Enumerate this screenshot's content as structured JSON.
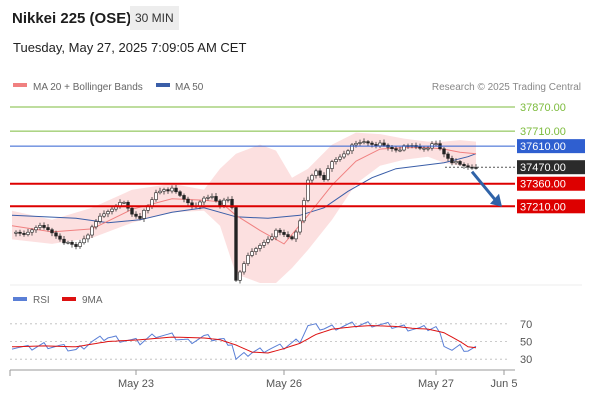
{
  "header": {
    "instrument": "Nikkei 225 (OSE)",
    "timeframe": "30 MIN",
    "timestamp": "Tuesday, May 27, 2025 7:09:05 AM CET",
    "credit": "Research © 2025 Trading Central"
  },
  "legend": {
    "price": [
      {
        "label": "MA 20 + Bollinger Bands",
        "color": "#f08080"
      },
      {
        "label": "MA 50",
        "color": "#3a5ea8"
      }
    ],
    "rsi": [
      {
        "label": "RSI",
        "color": "#5a7fd6"
      },
      {
        "label": "9MA",
        "color": "#dd1111"
      }
    ]
  },
  "chart_data": [
    {
      "type": "candlestick",
      "ylim": [
        36700,
        37950
      ],
      "levels": [
        {
          "value": 37870,
          "label": "37870.00",
          "kind": "resistance-target",
          "color": "#7cbb3c"
        },
        {
          "value": 37710,
          "label": "37710.00",
          "kind": "resistance-target",
          "color": "#7cbb3c"
        },
        {
          "value": 37610,
          "label": "37610.00",
          "kind": "pivot",
          "color": "#2f5fd0"
        },
        {
          "value": 37470,
          "label": "37470.00",
          "kind": "last-price",
          "color": "#2b2b2b"
        },
        {
          "value": 37360,
          "label": "37360.00",
          "kind": "support",
          "color": "#dd0000"
        },
        {
          "value": 37210,
          "label": "37210.00",
          "kind": "support",
          "color": "#dd0000"
        }
      ],
      "x_ticks": [
        "May 23",
        "May 26",
        "May 27",
        "Jun 5"
      ],
      "close_path": [
        [
          0,
          37030
        ],
        [
          3,
          37020
        ],
        [
          6,
          37080
        ],
        [
          9,
          37050
        ],
        [
          12,
          37000
        ],
        [
          14,
          36960
        ],
        [
          16,
          36940
        ],
        [
          18,
          37000
        ],
        [
          20,
          37060
        ],
        [
          22,
          37140
        ],
        [
          24,
          37180
        ],
        [
          26,
          37220
        ],
        [
          28,
          37230
        ],
        [
          30,
          37160
        ],
        [
          32,
          37140
        ],
        [
          34,
          37200
        ],
        [
          36,
          37300
        ],
        [
          38,
          37330
        ],
        [
          40,
          37320
        ],
        [
          42,
          37280
        ],
        [
          44,
          37240
        ],
        [
          46,
          37200
        ],
        [
          48,
          37260
        ],
        [
          50,
          37280
        ],
        [
          52,
          37230
        ],
        [
          54,
          37250
        ],
        [
          55,
          37200
        ],
        [
          56,
          36720
        ],
        [
          58,
          36840
        ],
        [
          60,
          36900
        ],
        [
          62,
          36950
        ],
        [
          64,
          37000
        ],
        [
          66,
          37040
        ],
        [
          68,
          37020
        ],
        [
          70,
          37000
        ],
        [
          72,
          37100
        ],
        [
          74,
          37380
        ],
        [
          76,
          37450
        ],
        [
          78,
          37400
        ],
        [
          80,
          37500
        ],
        [
          82,
          37540
        ],
        [
          84,
          37590
        ],
        [
          86,
          37620
        ],
        [
          88,
          37640
        ],
        [
          90,
          37630
        ],
        [
          92,
          37620
        ],
        [
          94,
          37600
        ],
        [
          96,
          37590
        ],
        [
          98,
          37600
        ],
        [
          100,
          37610
        ],
        [
          102,
          37600
        ],
        [
          104,
          37610
        ],
        [
          106,
          37620
        ],
        [
          108,
          37560
        ],
        [
          110,
          37510
        ],
        [
          112,
          37480
        ],
        [
          114,
          37470
        ],
        [
          116,
          37475
        ]
      ],
      "ma50": [
        [
          0,
          37150
        ],
        [
          8,
          37140
        ],
        [
          16,
          37130
        ],
        [
          24,
          37100
        ],
        [
          32,
          37120
        ],
        [
          40,
          37170
        ],
        [
          48,
          37200
        ],
        [
          56,
          37140
        ],
        [
          64,
          37130
        ],
        [
          72,
          37150
        ],
        [
          78,
          37200
        ],
        [
          84,
          37310
        ],
        [
          90,
          37400
        ],
        [
          96,
          37460
        ],
        [
          102,
          37480
        ],
        [
          108,
          37500
        ],
        [
          114,
          37540
        ],
        [
          116,
          37560
        ]
      ],
      "ma20": [
        [
          0,
          37080
        ],
        [
          10,
          37040
        ],
        [
          20,
          37060
        ],
        [
          30,
          37190
        ],
        [
          40,
          37260
        ],
        [
          48,
          37250
        ],
        [
          52,
          37240
        ],
        [
          56,
          37150
        ],
        [
          62,
          37050
        ],
        [
          68,
          36960
        ],
        [
          74,
          37150
        ],
        [
          80,
          37350
        ],
        [
          86,
          37510
        ],
        [
          92,
          37590
        ],
        [
          98,
          37600
        ],
        [
          104,
          37600
        ],
        [
          108,
          37590
        ],
        [
          112,
          37570
        ],
        [
          116,
          37560
        ]
      ],
      "bb_upper": [
        [
          0,
          37180
        ],
        [
          10,
          37120
        ],
        [
          20,
          37200
        ],
        [
          30,
          37320
        ],
        [
          40,
          37360
        ],
        [
          48,
          37320
        ],
        [
          52,
          37460
        ],
        [
          56,
          37560
        ],
        [
          62,
          37620
        ],
        [
          66,
          37580
        ],
        [
          70,
          37400
        ],
        [
          74,
          37460
        ],
        [
          80,
          37620
        ],
        [
          86,
          37700
        ],
        [
          92,
          37690
        ],
        [
          98,
          37660
        ],
        [
          104,
          37640
        ],
        [
          108,
          37640
        ],
        [
          112,
          37650
        ],
        [
          116,
          37640
        ]
      ],
      "bb_lower": [
        [
          0,
          36990
        ],
        [
          10,
          36960
        ],
        [
          20,
          37000
        ],
        [
          30,
          37100
        ],
        [
          40,
          37170
        ],
        [
          48,
          37180
        ],
        [
          52,
          37080
        ],
        [
          56,
          36760
        ],
        [
          62,
          36700
        ],
        [
          66,
          36700
        ],
        [
          70,
          36800
        ],
        [
          74,
          36920
        ],
        [
          80,
          37120
        ],
        [
          86,
          37360
        ],
        [
          92,
          37480
        ],
        [
          98,
          37520
        ],
        [
          104,
          37540
        ],
        [
          108,
          37500
        ],
        [
          112,
          37480
        ],
        [
          116,
          37470
        ]
      ]
    },
    {
      "type": "line",
      "name": "RSI panel",
      "ylim": [
        20,
        80
      ],
      "y_ticks": [
        70,
        50,
        30
      ],
      "series": [
        {
          "name": "RSI",
          "color": "#5a7fd6",
          "points": [
            [
              0,
              45
            ],
            [
              4,
              42
            ],
            [
              8,
              46
            ],
            [
              12,
              44
            ],
            [
              16,
              40
            ],
            [
              20,
              50
            ],
            [
              24,
              55
            ],
            [
              28,
              52
            ],
            [
              32,
              49
            ],
            [
              36,
              58
            ],
            [
              40,
              56
            ],
            [
              44,
              50
            ],
            [
              48,
              55
            ],
            [
              52,
              52
            ],
            [
              55,
              48
            ],
            [
              56,
              30
            ],
            [
              60,
              38
            ],
            [
              64,
              42
            ],
            [
              68,
              44
            ],
            [
              72,
              52
            ],
            [
              74,
              68
            ],
            [
              78,
              65
            ],
            [
              82,
              67
            ],
            [
              86,
              69
            ],
            [
              90,
              70
            ],
            [
              94,
              68
            ],
            [
              98,
              66
            ],
            [
              102,
              64
            ],
            [
              106,
              66
            ],
            [
              108,
              48
            ],
            [
              110,
              40
            ],
            [
              112,
              43
            ],
            [
              114,
              40
            ],
            [
              116,
              42
            ]
          ]
        },
        {
          "name": "9MA",
          "color": "#dd1111",
          "points": [
            [
              0,
              44
            ],
            [
              8,
              45
            ],
            [
              16,
              44
            ],
            [
              24,
              50
            ],
            [
              32,
              52
            ],
            [
              40,
              55
            ],
            [
              48,
              54
            ],
            [
              52,
              52
            ],
            [
              56,
              46
            ],
            [
              60,
              38
            ],
            [
              64,
              37
            ],
            [
              68,
              42
            ],
            [
              72,
              48
            ],
            [
              76,
              58
            ],
            [
              80,
              64
            ],
            [
              86,
              67
            ],
            [
              90,
              68
            ],
            [
              96,
              67
            ],
            [
              100,
              65
            ],
            [
              104,
              64
            ],
            [
              108,
              60
            ],
            [
              112,
              50
            ],
            [
              114,
              44
            ],
            [
              116,
              43
            ]
          ]
        }
      ]
    }
  ]
}
